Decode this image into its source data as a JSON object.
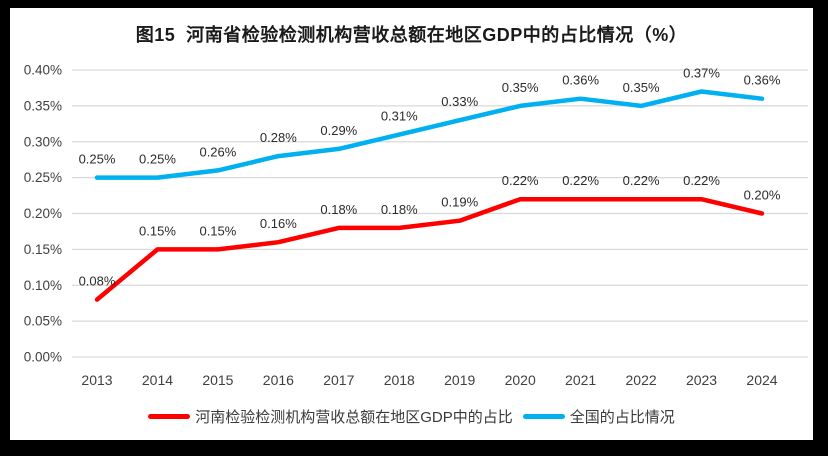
{
  "chart_data": {
    "type": "line",
    "title": "图15  河南省检验检测机构营收总额在地区GDP中的占比情况（%）",
    "categories": [
      "2013",
      "2014",
      "2015",
      "2016",
      "2017",
      "2018",
      "2019",
      "2020",
      "2021",
      "2022",
      "2023",
      "2024"
    ],
    "series": [
      {
        "key": "henan",
        "name": "河南检验检测机构营收总额在地区GDP中的占比",
        "color": "#FF0000",
        "values": [
          0.08,
          0.15,
          0.15,
          0.16,
          0.18,
          0.18,
          0.19,
          0.22,
          0.22,
          0.22,
          0.22,
          0.2
        ],
        "labels": [
          "0.08%",
          "0.15%",
          "0.15%",
          "0.16%",
          "0.18%",
          "0.18%",
          "0.19%",
          "0.22%",
          "0.22%",
          "0.22%",
          "0.22%",
          "0.20%"
        ]
      },
      {
        "key": "national",
        "name": "全国的占比情况",
        "color": "#00B0F0",
        "values": [
          0.25,
          0.25,
          0.26,
          0.28,
          0.29,
          0.31,
          0.33,
          0.35,
          0.36,
          0.35,
          0.37,
          0.36
        ],
        "labels": [
          "0.25%",
          "0.25%",
          "0.26%",
          "0.28%",
          "0.29%",
          "0.31%",
          "0.33%",
          "0.35%",
          "0.36%",
          "0.35%",
          "0.37%",
          "0.36%"
        ]
      }
    ],
    "ylim": [
      0,
      0.4
    ],
    "yticks": [
      {
        "value": 0.0,
        "label": "0.00%"
      },
      {
        "value": 0.05,
        "label": "0.05%"
      },
      {
        "value": 0.1,
        "label": "0.10%"
      },
      {
        "value": 0.15,
        "label": "0.15%"
      },
      {
        "value": 0.2,
        "label": "0.20%"
      },
      {
        "value": 0.25,
        "label": "0.25%"
      },
      {
        "value": 0.3,
        "label": "0.30%"
      },
      {
        "value": 0.35,
        "label": "0.35%"
      },
      {
        "value": 0.4,
        "label": "0.40%"
      }
    ],
    "grid": true,
    "legend_position": "bottom"
  },
  "colors": {
    "gridline": "#D9D9D9",
    "axis_text": "#404040",
    "data_label_text": "#2b2b2b",
    "background": "#FFFFFF",
    "frame": "#000000"
  }
}
